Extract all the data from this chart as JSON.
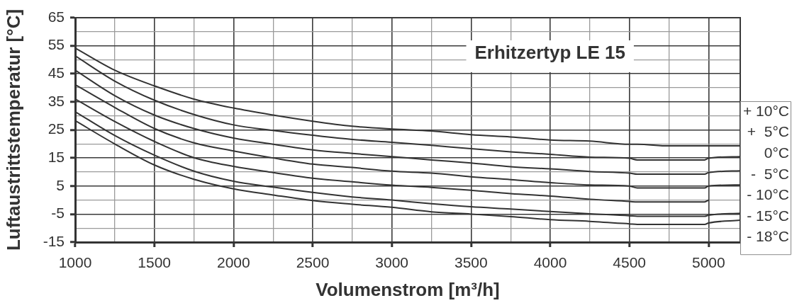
{
  "chart_data": {
    "type": "line",
    "title": "Erhitzertyp LE 15",
    "xlabel": "Volumenstrom [m³/h]",
    "ylabel": "Luftaustrittstemperatur [°C]",
    "x": [
      1000,
      1250,
      1500,
      1750,
      2000,
      2250,
      2500,
      2750,
      3000,
      3250,
      3500,
      3750,
      4000,
      4250,
      4500,
      4550,
      4750,
      4975,
      5000,
      5200
    ],
    "series": [
      {
        "name": "+ 10°C",
        "color": "#333333",
        "values": [
          54.2,
          46.3,
          40.7,
          36.0,
          32.8,
          30.3,
          28.1,
          26.3,
          25.3,
          24.6,
          23.3,
          22.5,
          21.4,
          21.0,
          19.9,
          19.9,
          19.3,
          19.3,
          19.3,
          19.3
        ]
      },
      {
        "name": "+  5°C",
        "color": "#333333",
        "values": [
          51.4,
          42.4,
          35.6,
          30.5,
          26.8,
          24.8,
          23.1,
          21.6,
          20.6,
          19.5,
          18.3,
          17.2,
          16.3,
          15.3,
          14.9,
          14.3,
          14.3,
          14.3,
          14.9,
          15.5
        ]
      },
      {
        "name": "0°C",
        "color": "#333333",
        "values": [
          46.3,
          37.2,
          30.3,
          25.5,
          22.1,
          19.9,
          17.9,
          16.6,
          15.5,
          14.3,
          13.2,
          11.9,
          11.1,
          10.2,
          9.6,
          9.2,
          9.2,
          9.2,
          9.8,
          10.4
        ]
      },
      {
        "name": "-  5°C",
        "color": "#333333",
        "values": [
          41.1,
          33.0,
          25.5,
          20.4,
          17.5,
          15.0,
          12.8,
          11.6,
          10.3,
          9.6,
          8.3,
          7.3,
          6.2,
          5.4,
          5.0,
          4.3,
          4.3,
          4.3,
          5.0,
          5.4
        ]
      },
      {
        "name": "- 10°C",
        "color": "#333333",
        "values": [
          36.0,
          28.0,
          20.9,
          15.1,
          12.0,
          9.8,
          7.8,
          6.5,
          5.3,
          4.5,
          3.5,
          2.3,
          1.4,
          0.3,
          -0.5,
          -0.7,
          -0.7,
          -0.7,
          0.0,
          null
        ]
      },
      {
        "name": "- 15°C",
        "color": "#333333",
        "values": [
          31.5,
          23.0,
          16.0,
          10.3,
          6.7,
          4.6,
          2.7,
          1.1,
          0.0,
          -1.3,
          -2.4,
          -3.2,
          -4.1,
          -4.9,
          -5.6,
          -5.8,
          -5.8,
          -5.8,
          -5.4,
          -4.7
        ]
      },
      {
        "name": "- 18°C",
        "color": "#333333",
        "values": [
          28.3,
          20.0,
          12.5,
          7.4,
          4.0,
          1.8,
          -0.2,
          -1.5,
          -2.6,
          -4.2,
          -5.0,
          -5.9,
          -7.0,
          -7.6,
          -8.5,
          -8.7,
          -8.7,
          -8.7,
          -8.2,
          -7.2
        ]
      }
    ],
    "xlim": [
      1000,
      5200
    ],
    "xticks": [
      1000,
      {
        "value": 1250,
        "label": null
      },
      1500,
      {
        "value": 1750,
        "label": null
      },
      2000,
      {
        "value": 2250,
        "label": null
      },
      2500,
      {
        "value": 2750,
        "label": null
      },
      3000,
      {
        "value": 3250,
        "label": null
      },
      3500,
      {
        "value": 3750,
        "label": null
      },
      4000,
      {
        "value": 4250,
        "label": null
      },
      4500,
      {
        "value": 4750,
        "label": null
      },
      5000
    ],
    "ylim": [
      -15,
      65
    ],
    "yticks": [
      -15,
      {
        "value": -10,
        "label": null
      },
      -5,
      {
        "value": 0,
        "label": null
      },
      5,
      {
        "value": 10,
        "label": null
      },
      15,
      {
        "value": 20,
        "label": null
      },
      25,
      {
        "value": 30,
        "label": null
      },
      35,
      {
        "value": 40,
        "label": null
      },
      45,
      {
        "value": 50,
        "label": null
      },
      55,
      {
        "value": 60,
        "label": null
      },
      65
    ],
    "grid": true,
    "legend": "right",
    "marker": "none",
    "line_style": "solid"
  }
}
